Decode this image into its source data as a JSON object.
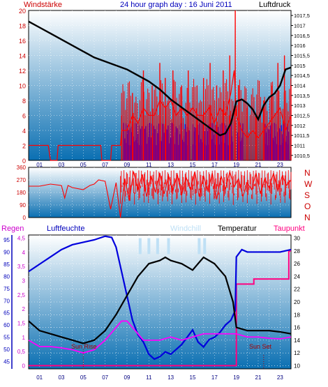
{
  "header": {
    "left_title": "Windstärke",
    "center_title": "24 hour graph day : 16 Juni 2011",
    "right_title": "Luftdruck"
  },
  "mid_panel": {
    "direction_letters": [
      "N",
      "W",
      "S",
      "O",
      "N"
    ]
  },
  "bottom_header": {
    "regen": "Regen",
    "luftfeuchte": "Luftfeuchte",
    "windchill": "Windchill",
    "temperatur": "Temperatur",
    "taupunkt": "Taupunkt"
  },
  "annotations": {
    "sun_rise": "Sun Rise",
    "sun_set": "Sun Set"
  },
  "colors": {
    "frame": "#000000",
    "plot_top": "#ffffff",
    "plot_bottom": "#0a6fb2",
    "wind": "#ff0000",
    "gust": "#0000ff",
    "pressure": "#000000",
    "humidity": "#0000dd",
    "windchill": "#bfe0f5",
    "temperature": "#000000",
    "dewpoint": "#ff00ff",
    "rain": "#ff0080",
    "title_blue": "#0000bb",
    "left_red": "#cc0000"
  },
  "chart_data": [
    {
      "type": "line",
      "name": "wind-pressure",
      "x_ticks": [
        "01",
        "03",
        "05",
        "07",
        "09",
        "11",
        "13",
        "15",
        "17",
        "19",
        "21",
        "23"
      ],
      "y_left_ticks": [
        "0",
        "2",
        "4",
        "6",
        "8",
        "10",
        "12",
        "14",
        "16",
        "18",
        "20"
      ],
      "y_right_ticks": [
        "1010,5",
        "1011",
        "1011,5",
        "1012",
        "1012,5",
        "1013",
        "1013,5",
        "1014",
        "1014,5",
        "1015",
        "1015,5",
        "1016",
        "1016,5",
        "1017",
        "1017,5"
      ],
      "ylim_left": [
        0,
        20
      ],
      "ylim_right": [
        1010.25,
        1017.75
      ],
      "xlim": [
        0,
        24
      ],
      "grid": true,
      "wind_avg": [
        [
          0,
          2
        ],
        [
          1.8,
          2
        ],
        [
          2,
          0
        ],
        [
          2.6,
          0
        ],
        [
          2.7,
          2
        ],
        [
          6.6,
          2
        ],
        [
          6.7,
          0
        ],
        [
          7.5,
          0
        ],
        [
          7.6,
          2
        ],
        [
          8.4,
          2
        ],
        [
          8.5,
          4
        ],
        [
          9,
          4
        ],
        [
          9.5,
          6
        ],
        [
          10,
          5
        ],
        [
          10.5,
          7
        ],
        [
          11,
          6
        ],
        [
          11.5,
          6
        ],
        [
          12,
          8
        ],
        [
          12.5,
          7
        ],
        [
          13,
          8
        ],
        [
          13.5,
          6
        ],
        [
          14,
          7
        ],
        [
          14.5,
          6
        ],
        [
          15,
          7
        ],
        [
          15.5,
          6
        ],
        [
          16,
          6
        ],
        [
          16.5,
          7
        ],
        [
          17,
          5
        ],
        [
          17.5,
          7
        ],
        [
          18,
          6
        ],
        [
          18.5,
          9
        ],
        [
          18.8,
          12
        ],
        [
          19,
          6
        ],
        [
          19.5,
          4
        ],
        [
          20,
          3
        ],
        [
          20.5,
          4
        ],
        [
          21,
          3
        ],
        [
          21.5,
          4
        ],
        [
          22,
          5
        ],
        [
          22.5,
          6
        ],
        [
          23,
          7
        ],
        [
          23.5,
          4
        ],
        [
          24,
          6
        ]
      ],
      "wind_gust": [
        [
          8.5,
          6
        ],
        [
          9.5,
          9
        ],
        [
          10.5,
          12
        ],
        [
          11.3,
          10
        ],
        [
          12,
          13
        ],
        [
          12.5,
          11
        ],
        [
          13.2,
          12
        ],
        [
          14,
          10
        ],
        [
          14.6,
          12
        ],
        [
          15.4,
          10
        ],
        [
          16,
          11
        ],
        [
          16.6,
          13
        ],
        [
          17.2,
          10
        ],
        [
          17.8,
          12
        ],
        [
          18.4,
          14
        ],
        [
          18.9,
          20
        ],
        [
          19.2,
          10
        ],
        [
          20,
          7
        ],
        [
          20.8,
          6
        ],
        [
          21.5,
          8
        ],
        [
          22.2,
          10
        ],
        [
          22.8,
          13
        ],
        [
          23.4,
          14
        ],
        [
          24,
          10
        ]
      ],
      "gust_bars_ranges": [
        [
          8.7,
          10.4
        ],
        [
          10.6,
          14.8
        ],
        [
          15,
          18.7
        ],
        [
          19.1,
          19.6
        ],
        [
          21.5,
          23.8
        ]
      ],
      "pressure": [
        [
          0,
          1017.2
        ],
        [
          1,
          1016.9
        ],
        [
          2,
          1016.6
        ],
        [
          3,
          1016.3
        ],
        [
          4,
          1016.0
        ],
        [
          5,
          1015.7
        ],
        [
          6,
          1015.4
        ],
        [
          7,
          1015.2
        ],
        [
          8,
          1015.0
        ],
        [
          9,
          1014.8
        ],
        [
          10,
          1014.5
        ],
        [
          11,
          1014.2
        ],
        [
          12,
          1013.8
        ],
        [
          13,
          1013.3
        ],
        [
          14,
          1012.9
        ],
        [
          15,
          1012.5
        ],
        [
          16,
          1012.1
        ],
        [
          17,
          1011.7
        ],
        [
          17.5,
          1011.5
        ],
        [
          18,
          1011.6
        ],
        [
          18.5,
          1012.1
        ],
        [
          19,
          1013.2
        ],
        [
          19.5,
          1013.3
        ],
        [
          20,
          1013.1
        ],
        [
          20.5,
          1012.8
        ],
        [
          21,
          1012.3
        ],
        [
          21.5,
          1013.0
        ],
        [
          22,
          1013.4
        ],
        [
          22.5,
          1013.6
        ],
        [
          23,
          1014.0
        ],
        [
          23.5,
          1014.8
        ],
        [
          24,
          1014.9
        ]
      ]
    },
    {
      "type": "line",
      "name": "wind-direction",
      "y_ticks": [
        "0",
        "90",
        "180",
        "270",
        "360"
      ],
      "ylim": [
        0,
        360
      ],
      "xlim": [
        0,
        24
      ],
      "grid": true,
      "direction": [
        [
          0,
          225
        ],
        [
          1,
          225
        ],
        [
          2,
          240
        ],
        [
          3,
          230
        ],
        [
          3.3,
          140
        ],
        [
          3.6,
          230
        ],
        [
          4,
          215
        ],
        [
          5,
          200
        ],
        [
          5.6,
          230
        ],
        [
          6,
          240
        ],
        [
          6.4,
          270
        ],
        [
          7,
          260
        ],
        [
          7.5,
          60
        ],
        [
          8,
          250
        ],
        [
          8.4,
          0
        ],
        [
          8.8,
          280
        ],
        [
          9.2,
          120
        ],
        [
          9.6,
          330
        ],
        [
          10,
          200
        ],
        [
          10.4,
          310
        ],
        [
          10.8,
          150
        ],
        [
          11.2,
          300
        ],
        [
          11.6,
          180
        ],
        [
          12,
          320
        ],
        [
          12.4,
          170
        ],
        [
          12.8,
          300
        ],
        [
          13.2,
          190
        ],
        [
          13.6,
          310
        ],
        [
          14,
          160
        ],
        [
          14.4,
          290
        ],
        [
          14.8,
          200
        ],
        [
          15.2,
          330
        ],
        [
          15.6,
          150
        ],
        [
          16,
          300
        ],
        [
          16.4,
          190
        ],
        [
          16.8,
          320
        ],
        [
          17.2,
          130
        ],
        [
          17.6,
          300
        ],
        [
          18,
          200
        ],
        [
          18.4,
          330
        ],
        [
          18.8,
          220
        ],
        [
          19.2,
          280
        ],
        [
          19.6,
          150
        ],
        [
          20,
          250
        ],
        [
          20.4,
          200
        ],
        [
          20.8,
          320
        ],
        [
          21.2,
          170
        ],
        [
          21.6,
          280
        ],
        [
          22,
          210
        ],
        [
          22.4,
          320
        ],
        [
          22.8,
          190
        ],
        [
          23.2,
          300
        ],
        [
          23.6,
          230
        ],
        [
          24,
          270
        ]
      ]
    },
    {
      "type": "line",
      "name": "humidity-temperature",
      "x_ticks": [
        "01",
        "03",
        "05",
        "07",
        "09",
        "11",
        "13",
        "15",
        "17",
        "19",
        "21",
        "23"
      ],
      "y_humidity_ticks": [
        "45",
        "50",
        "55",
        "60",
        "65",
        "70",
        "75",
        "80",
        "85",
        "90",
        "95"
      ],
      "y_rain_ticks": [
        "0",
        "0,5",
        "1",
        "1,5",
        "2",
        "2,5",
        "3",
        "3,5",
        "4",
        "4,5"
      ],
      "y_temp_ticks": [
        "10",
        "12",
        "14",
        "16",
        "18",
        "20",
        "22",
        "24",
        "26",
        "28",
        "30"
      ],
      "ylim_temp": [
        10,
        30
      ],
      "xlim": [
        0,
        24
      ],
      "grid": true,
      "humidity_pct": [
        [
          0,
          82
        ],
        [
          1,
          85
        ],
        [
          2,
          88
        ],
        [
          3,
          91
        ],
        [
          4,
          93
        ],
        [
          5,
          94
        ],
        [
          6,
          95
        ],
        [
          7,
          96.5
        ],
        [
          7.6,
          96
        ],
        [
          8,
          92
        ],
        [
          8.5,
          82
        ],
        [
          9,
          72
        ],
        [
          9.5,
          62
        ],
        [
          10,
          56
        ],
        [
          10.5,
          53
        ],
        [
          11,
          48
        ],
        [
          11.5,
          46
        ],
        [
          12,
          47
        ],
        [
          12.5,
          49
        ],
        [
          13,
          48
        ],
        [
          13.5,
          50
        ],
        [
          14,
          52
        ],
        [
          14.5,
          55
        ],
        [
          15,
          58
        ],
        [
          15.5,
          53
        ],
        [
          16,
          51
        ],
        [
          16.5,
          54
        ],
        [
          17,
          55
        ],
        [
          17.5,
          57
        ],
        [
          18,
          60
        ],
        [
          18.5,
          62
        ],
        [
          18.9,
          66
        ],
        [
          19,
          88
        ],
        [
          19.5,
          91
        ],
        [
          20,
          90
        ],
        [
          21,
          90
        ],
        [
          22,
          90
        ],
        [
          23,
          90
        ],
        [
          24,
          91
        ]
      ],
      "windchill": [
        [
          10.2,
          30
        ],
        [
          10.2,
          28
        ],
        [
          11,
          30
        ],
        [
          11,
          28
        ],
        [
          11.8,
          30
        ],
        [
          11.8,
          28
        ],
        [
          12.8,
          30
        ],
        [
          12.8,
          28
        ],
        [
          15.6,
          30
        ],
        [
          15.6,
          28
        ],
        [
          16.1,
          30
        ],
        [
          16.1,
          28
        ]
      ],
      "temperature": [
        [
          0,
          17
        ],
        [
          1,
          15.5
        ],
        [
          2,
          15
        ],
        [
          3,
          14.5
        ],
        [
          4,
          14
        ],
        [
          5,
          13.5
        ],
        [
          6,
          14
        ],
        [
          7,
          15.5
        ],
        [
          8,
          18
        ],
        [
          9,
          21
        ],
        [
          10,
          24
        ],
        [
          11,
          26
        ],
        [
          12,
          26.5
        ],
        [
          12.5,
          27
        ],
        [
          13,
          26.5
        ],
        [
          14,
          26
        ],
        [
          15,
          25
        ],
        [
          15.5,
          26
        ],
        [
          16,
          27
        ],
        [
          17,
          26
        ],
        [
          18,
          24
        ],
        [
          18.7,
          20
        ],
        [
          19,
          16
        ],
        [
          20,
          15.5
        ],
        [
          21,
          15.5
        ],
        [
          22,
          15.5
        ],
        [
          23,
          15.3
        ],
        [
          24,
          15
        ]
      ],
      "dewpoint": [
        [
          0,
          14
        ],
        [
          1,
          13
        ],
        [
          2,
          13
        ],
        [
          3,
          12.8
        ],
        [
          4,
          12.5
        ],
        [
          5,
          12
        ],
        [
          6,
          12.5
        ],
        [
          7,
          14
        ],
        [
          8,
          16
        ],
        [
          8.5,
          17
        ],
        [
          9,
          17
        ],
        [
          9.5,
          16
        ],
        [
          10,
          15
        ],
        [
          10.5,
          14
        ],
        [
          11,
          14
        ],
        [
          11.5,
          14
        ],
        [
          12,
          14
        ],
        [
          13,
          14.5
        ],
        [
          14,
          14
        ],
        [
          15,
          14.5
        ],
        [
          16,
          15
        ],
        [
          17,
          15
        ],
        [
          18,
          15
        ],
        [
          19,
          15
        ],
        [
          20,
          14.5
        ],
        [
          21,
          14.5
        ],
        [
          22,
          14.3
        ],
        [
          23,
          14.2
        ],
        [
          24,
          14.5
        ]
      ],
      "rain_cumulative_mm": [
        [
          0,
          0
        ],
        [
          19,
          0
        ],
        [
          19,
          3.2
        ],
        [
          20,
          3.2
        ],
        [
          20.6,
          3.2
        ],
        [
          20.6,
          3.4
        ],
        [
          23.8,
          3.4
        ],
        [
          23.8,
          4.5
        ],
        [
          24,
          4.5
        ]
      ],
      "sun_rise_hour": 5,
      "sun_set_hour": 21.5
    }
  ]
}
